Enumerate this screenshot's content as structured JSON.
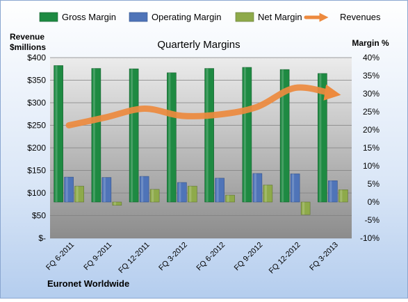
{
  "chart_data": {
    "type": "bar",
    "title": "Quarterly Margins",
    "left_axis_title": [
      "Revenue",
      "$millions"
    ],
    "right_axis_title": "Margin %",
    "footer": "Euronet Worldwide",
    "categories": [
      "FQ 6-2011",
      "FQ 9-2011",
      "FQ 12-2011",
      "FQ 3-2012",
      "FQ 6-2012",
      "FQ 9-2012",
      "FQ 12-2012",
      "FQ 3-2013"
    ],
    "left_ticks": [
      "$-",
      "$50",
      "$100",
      "$150",
      "$200",
      "$250",
      "$300",
      "$350",
      "$400"
    ],
    "right_ticks": [
      "-10%",
      "-5%",
      "0%",
      "5%",
      "10%",
      "15%",
      "20%",
      "25%",
      "30%",
      "35%",
      "40%"
    ],
    "left_range": [
      0,
      400
    ],
    "right_range": [
      -10,
      40
    ],
    "grid": true,
    "legend_position": "top",
    "series": [
      {
        "name": "Gross Margin",
        "type": "bar",
        "axis": "right",
        "color": "#1E8A42",
        "values": [
          37.8,
          37.0,
          36.9,
          35.8,
          37.0,
          37.3,
          36.7,
          35.6
        ]
      },
      {
        "name": "Operating Margin",
        "type": "bar",
        "axis": "right",
        "color": "#4F74B8",
        "values": [
          6.9,
          6.8,
          7.1,
          5.4,
          6.6,
          7.9,
          7.8,
          5.9
        ]
      },
      {
        "name": "Net Margin",
        "type": "bar",
        "axis": "right",
        "color": "#8EAA4A",
        "values": [
          4.4,
          -0.9,
          3.5,
          4.4,
          1.9,
          4.7,
          -3.5,
          3.4
        ]
      },
      {
        "name": "Revenues",
        "type": "line",
        "axis": "left",
        "color": "#ED8A3E",
        "values": [
          250,
          268,
          287,
          271,
          274,
          291,
          333,
          320
        ]
      }
    ]
  }
}
